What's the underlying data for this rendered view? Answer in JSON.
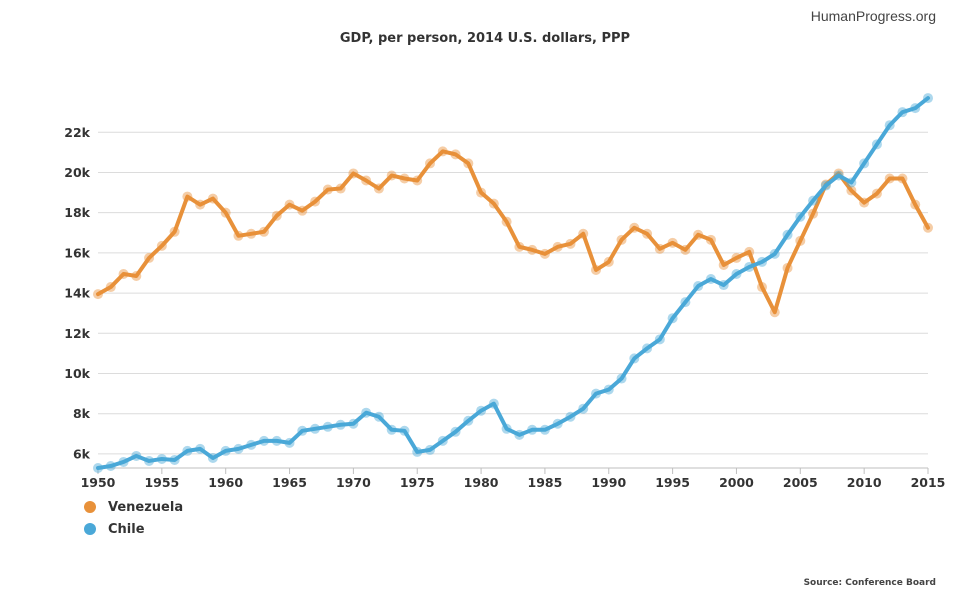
{
  "site": {
    "brand": "HumanProgress.org"
  },
  "footer": {
    "source": "Source: Conference Board"
  },
  "chart_data": {
    "type": "line",
    "title": "GDP, per person, 2014 U.S. dollars, PPP",
    "xlabel": "",
    "ylabel": "",
    "x": [
      1950,
      1951,
      1952,
      1953,
      1954,
      1955,
      1956,
      1957,
      1958,
      1959,
      1960,
      1961,
      1962,
      1963,
      1964,
      1965,
      1966,
      1967,
      1968,
      1969,
      1970,
      1971,
      1972,
      1973,
      1974,
      1975,
      1976,
      1977,
      1978,
      1979,
      1980,
      1981,
      1982,
      1983,
      1984,
      1985,
      1986,
      1987,
      1988,
      1989,
      1990,
      1991,
      1992,
      1993,
      1994,
      1995,
      1996,
      1997,
      1998,
      1999,
      2000,
      2001,
      2002,
      2003,
      2004,
      2005,
      2006,
      2007,
      2008,
      2009,
      2010,
      2011,
      2012,
      2013,
      2014,
      2015
    ],
    "xlim": [
      1950,
      2015
    ],
    "ylim": [
      5300,
      24500
    ],
    "x_ticks": [
      1950,
      1955,
      1960,
      1965,
      1970,
      1975,
      1980,
      1985,
      1990,
      1995,
      2000,
      2005,
      2010,
      2015
    ],
    "y_ticks": [
      6000,
      8000,
      10000,
      12000,
      14000,
      16000,
      18000,
      20000,
      22000
    ],
    "y_tick_labels": [
      "6k",
      "8k",
      "10k",
      "12k",
      "14k",
      "16k",
      "18k",
      "20k",
      "22k"
    ],
    "legend_position": "bottom-left",
    "grid": true,
    "series": [
      {
        "name": "Venezuela",
        "color": "#e8913a",
        "values": [
          13950,
          14300,
          14950,
          14850,
          15750,
          16350,
          17050,
          18800,
          18400,
          18700,
          18000,
          16850,
          16950,
          17050,
          17850,
          18400,
          18100,
          18550,
          19150,
          19200,
          19950,
          19600,
          19200,
          19850,
          19700,
          19600,
          20450,
          21050,
          20900,
          20450,
          19000,
          18450,
          17550,
          16300,
          16150,
          15950,
          16300,
          16450,
          16950,
          15150,
          15550,
          16650,
          17250,
          16950,
          16200,
          16500,
          16150,
          16900,
          16650,
          15400,
          15750,
          16050,
          14300,
          13050,
          15250,
          16600,
          17950,
          19400,
          19950,
          19100,
          18500,
          18950,
          19700,
          19700,
          18400,
          17250
        ]
      },
      {
        "name": "Chile",
        "color": "#4aa8d8",
        "values": [
          5300,
          5400,
          5600,
          5900,
          5650,
          5750,
          5700,
          6150,
          6250,
          5800,
          6150,
          6250,
          6450,
          6650,
          6650,
          6550,
          7150,
          7250,
          7350,
          7450,
          7500,
          8050,
          7850,
          7200,
          7150,
          6100,
          6200,
          6650,
          7100,
          7650,
          8150,
          8500,
          7250,
          6950,
          7200,
          7200,
          7500,
          7850,
          8250,
          9000,
          9200,
          9750,
          10750,
          11250,
          11700,
          12750,
          13550,
          14350,
          14700,
          14400,
          14950,
          15300,
          15550,
          15950,
          16900,
          17800,
          18600,
          19350,
          19850,
          19500,
          20450,
          21400,
          22350,
          23000,
          23200,
          23700
        ]
      }
    ]
  }
}
